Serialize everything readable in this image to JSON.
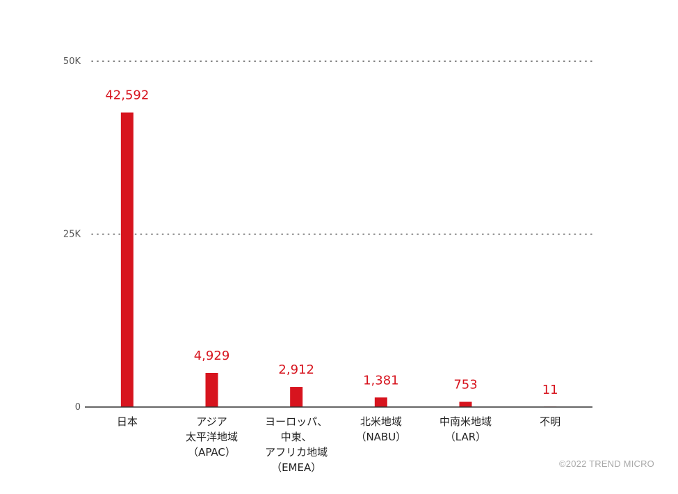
{
  "chart_data": {
    "type": "bar",
    "categories": [
      [
        "日本"
      ],
      [
        "アジア",
        "太平洋地域",
        "（APAC）"
      ],
      [
        "ヨーロッパ、",
        "中東、",
        "アフリカ地域",
        "（EMEA）"
      ],
      [
        "北米地域",
        "（NABU）"
      ],
      [
        "中南米地域",
        "（LAR）"
      ],
      [
        "不明"
      ]
    ],
    "values": [
      42592,
      4929,
      2912,
      1381,
      753,
      11
    ],
    "value_labels": [
      "42,592",
      "4,929",
      "2,912",
      "1,381",
      "753",
      "11"
    ],
    "yticks": [
      0,
      25000,
      50000
    ],
    "ytick_labels": [
      "0",
      "25K",
      "50K"
    ],
    "ylim": [
      0,
      50000
    ],
    "grid": "dotted",
    "colors": {
      "bar": "#d7141e",
      "label": "#d7141e",
      "axis": "#333333",
      "grid": "#555555"
    }
  },
  "footer": {
    "credit": "©2022 TREND MICRO"
  }
}
